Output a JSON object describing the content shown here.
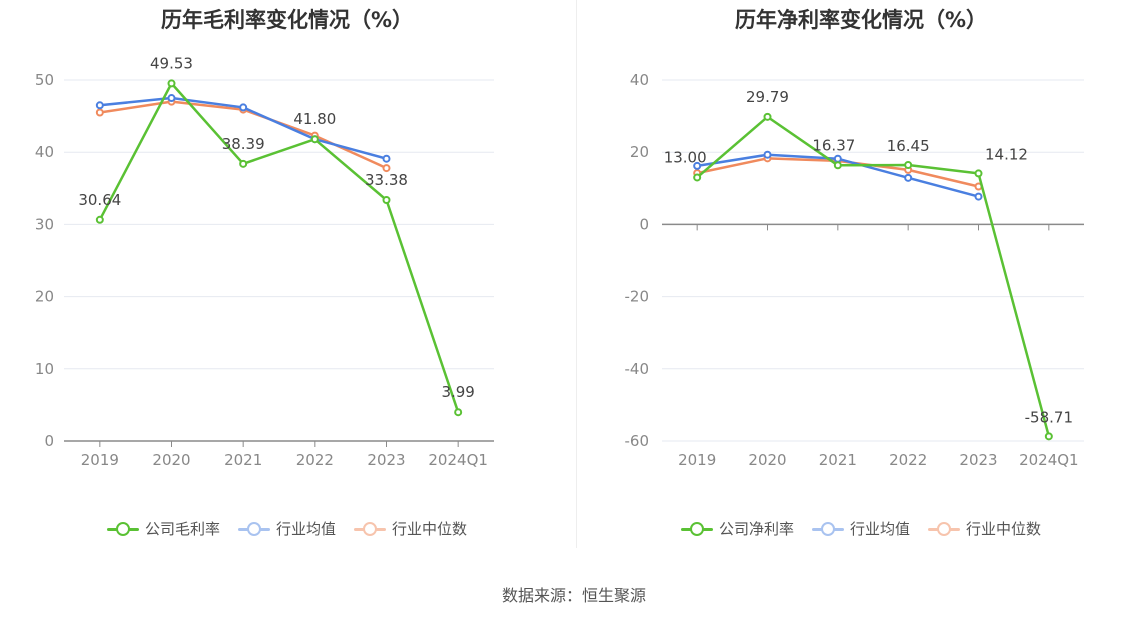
{
  "source_label": "数据来源：恒生聚源",
  "chart_data": [
    {
      "type": "line",
      "title": "历年毛利率变化情况（%）",
      "categories": [
        "2019",
        "2020",
        "2021",
        "2022",
        "2023",
        "2024Q1"
      ],
      "ylim": [
        0,
        50
      ],
      "yticks": [
        "0",
        "10",
        "20",
        "30",
        "40",
        "50"
      ],
      "grid": true,
      "legend_position": "bottom",
      "series": [
        {
          "name": "公司毛利率",
          "color": "#5ac134",
          "values": [
            30.64,
            49.53,
            38.39,
            41.8,
            33.38,
            3.99
          ],
          "labels": [
            "30.64",
            "49.53",
            "38.39",
            "41.80",
            "33.38",
            "3.99"
          ]
        },
        {
          "name": "行业均值",
          "color": "#4a7fe0",
          "values": [
            46.5,
            47.5,
            46.2,
            41.8,
            39.1,
            null
          ]
        },
        {
          "name": "行业中位数",
          "color": "#f08a5d",
          "values": [
            45.5,
            47.0,
            45.9,
            42.3,
            37.8,
            null
          ]
        }
      ]
    },
    {
      "type": "line",
      "title": "历年净利率变化情况（%）",
      "categories": [
        "2019",
        "2020",
        "2021",
        "2022",
        "2023",
        "2024Q1"
      ],
      "ylim": [
        -60,
        40
      ],
      "yticks": [
        "-60",
        "-40",
        "-20",
        "0",
        "20",
        "40"
      ],
      "grid": true,
      "legend_position": "bottom",
      "series": [
        {
          "name": "公司净利率",
          "color": "#5ac134",
          "values": [
            13.0,
            29.79,
            16.37,
            16.45,
            14.12,
            -58.71
          ],
          "labels": [
            "13.00",
            "29.79",
            "16.37",
            "16.45",
            "14.12",
            "-58.71"
          ]
        },
        {
          "name": "行业均值",
          "color": "#4a7fe0",
          "values": [
            16.2,
            19.3,
            18.2,
            12.9,
            7.7,
            null
          ]
        },
        {
          "name": "行业中位数",
          "color": "#f08a5d",
          "values": [
            14.2,
            18.3,
            17.6,
            15.1,
            10.5,
            null
          ]
        }
      ]
    }
  ]
}
